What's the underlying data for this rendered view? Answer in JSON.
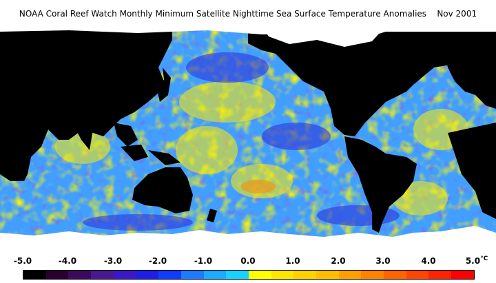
{
  "title": "NOAA Coral Reef Watch Monthly Minimum Satellite Nighttime Sea Surface Temperature Anomalies",
  "period": "Nov 2001",
  "legend": {
    "unit": "°C",
    "ticks": [
      "-5.0",
      "-4.0",
      "-3.0",
      "-2.0",
      "-1.0",
      "0.0",
      "1.0",
      "2.0",
      "3.0",
      "4.0",
      "5.0"
    ],
    "colors": [
      "#000000",
      "#2a0030",
      "#3c0a5c",
      "#4a1890",
      "#3a18c8",
      "#1e1ee6",
      "#0f3cff",
      "#1e7aff",
      "#1eaaff",
      "#19d2ff",
      "#ffff00",
      "#ffe600",
      "#ffd200",
      "#ffbe00",
      "#ffa000",
      "#ff8200",
      "#ff6400",
      "#ff4600",
      "#ff2300",
      "#ff0000"
    ]
  },
  "colors": {
    "land": "#000000",
    "ice": "#ffffff",
    "ocean_base": "#41a0ff",
    "warm": "#ffee00",
    "cool": "#2b2bd6",
    "hot": "#ff7a00"
  }
}
